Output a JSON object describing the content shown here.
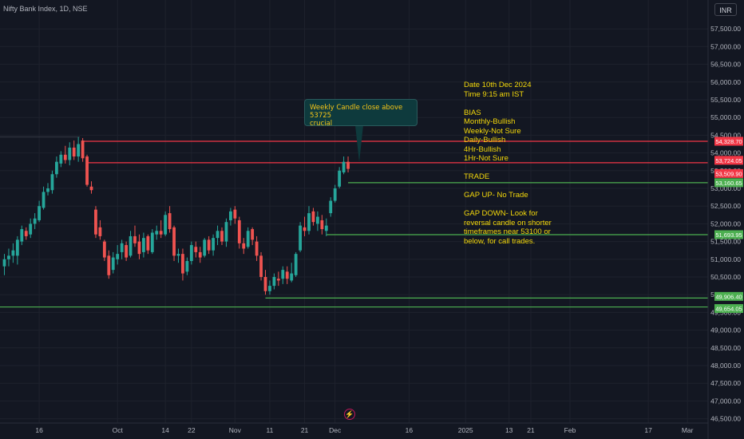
{
  "header": {
    "symbol": "Nifty Bank Index, 1D, NSE",
    "currency": "INR"
  },
  "colors": {
    "background": "#131722",
    "up": "#26a69a",
    "down": "#ef5350",
    "axis_text": "#b2b5be",
    "red_line": "#f23645",
    "green_line": "#4caf50",
    "note_text": "#f5d90a",
    "grid": "#1e222d"
  },
  "callout": {
    "line1": "Weekly Candle close above 53725",
    "line2": "crucial"
  },
  "notes": {
    "date": "Date 10th Dec 2024",
    "time": "Time 9:15 am IST",
    "bias_title": "BIAS",
    "monthly": "Monthly-Bullish",
    "weekly": "Weekly-Not Sure",
    "daily": "Daily-Bullish",
    "h4": "4Hr-Bullish",
    "h1": "1Hr-Not Sure",
    "trade_title": "TRADE",
    "gap_up": "GAP UP- No Trade",
    "gap_down_1": "GAP DOWN- Look for",
    "gap_down_2": "reversal candle on shorter",
    "gap_down_3": "timeframes near 53100 or",
    "gap_down_4": "below, for call trades."
  },
  "icons": {
    "event_marker": "lightning-bolt-icon"
  },
  "chart_data": {
    "type": "candlestick",
    "ylim": [
      46500,
      58000
    ],
    "y_ticks": [
      {
        "value": 57500,
        "label": "57,500.00"
      },
      {
        "value": 57000,
        "label": "57,000.00"
      },
      {
        "value": 56500,
        "label": "56,500.00"
      },
      {
        "value": 56000,
        "label": "56,000.00"
      },
      {
        "value": 55500,
        "label": "55,500.00"
      },
      {
        "value": 55000,
        "label": "55,000.00"
      },
      {
        "value": 54500,
        "label": "54,500.00"
      },
      {
        "value": 54000,
        "label": "54,000.00"
      },
      {
        "value": 53500,
        "label": "53,500.00"
      },
      {
        "value": 53000,
        "label": "53,000.00"
      },
      {
        "value": 52500,
        "label": "52,500.00"
      },
      {
        "value": 52000,
        "label": "52,000.00"
      },
      {
        "value": 51500,
        "label": "51,500.00"
      },
      {
        "value": 51000,
        "label": "51,000.00"
      },
      {
        "value": 50500,
        "label": "50,500.00"
      },
      {
        "value": 50000,
        "label": "50,000.00"
      },
      {
        "value": 49500,
        "label": "49,500.00"
      },
      {
        "value": 49000,
        "label": "49,000.00"
      },
      {
        "value": 48500,
        "label": "48,500.00"
      },
      {
        "value": 48000,
        "label": "48,000.00"
      },
      {
        "value": 47500,
        "label": "47,500.00"
      },
      {
        "value": 47000,
        "label": "47,000.00"
      },
      {
        "value": 46500,
        "label": "46,500.00"
      }
    ],
    "x_ticks": [
      {
        "label": "16",
        "bar": 8
      },
      {
        "label": "Oct",
        "bar": 26
      },
      {
        "label": "14",
        "bar": 37
      },
      {
        "label": "22",
        "bar": 43
      },
      {
        "label": "Nov",
        "bar": 53
      },
      {
        "label": "11",
        "bar": 61
      },
      {
        "label": "21",
        "bar": 69
      },
      {
        "label": "Dec",
        "bar": 76
      },
      {
        "label": "16",
        "bar": 93
      },
      {
        "label": "2025",
        "bar": 106
      },
      {
        "label": "13",
        "bar": 116
      },
      {
        "label": "21",
        "bar": 121
      },
      {
        "label": "Feb",
        "bar": 130
      },
      {
        "label": "17",
        "bar": 148
      },
      {
        "label": "Mar",
        "bar": 157
      }
    ],
    "candles": [
      {
        "o": 50800,
        "h": 51150,
        "l": 50550,
        "c": 51000
      },
      {
        "o": 51000,
        "h": 51300,
        "l": 50800,
        "c": 51100
      },
      {
        "o": 51100,
        "h": 51450,
        "l": 50900,
        "c": 51250
      },
      {
        "o": 51100,
        "h": 51650,
        "l": 50850,
        "c": 51550
      },
      {
        "o": 51500,
        "h": 51950,
        "l": 51400,
        "c": 51850
      },
      {
        "o": 51800,
        "h": 51900,
        "l": 51550,
        "c": 51650
      },
      {
        "o": 51700,
        "h": 52150,
        "l": 51600,
        "c": 52000
      },
      {
        "o": 52000,
        "h": 52300,
        "l": 51850,
        "c": 52150
      },
      {
        "o": 52100,
        "h": 52650,
        "l": 52050,
        "c": 52500
      },
      {
        "o": 52450,
        "h": 53050,
        "l": 52400,
        "c": 52900
      },
      {
        "o": 52900,
        "h": 53150,
        "l": 52800,
        "c": 53000
      },
      {
        "o": 52950,
        "h": 53500,
        "l": 52850,
        "c": 53400
      },
      {
        "o": 53400,
        "h": 53900,
        "l": 53300,
        "c": 53750
      },
      {
        "o": 53700,
        "h": 54050,
        "l": 53600,
        "c": 53950
      },
      {
        "o": 53950,
        "h": 54200,
        "l": 53700,
        "c": 53800
      },
      {
        "o": 53800,
        "h": 54300,
        "l": 53650,
        "c": 54150
      },
      {
        "o": 54150,
        "h": 54350,
        "l": 53800,
        "c": 53900
      },
      {
        "o": 53900,
        "h": 54450,
        "l": 53750,
        "c": 54250
      },
      {
        "o": 54350,
        "h": 54420,
        "l": 53750,
        "c": 53850
      },
      {
        "o": 53900,
        "h": 53950,
        "l": 53050,
        "c": 53100
      },
      {
        "o": 53050,
        "h": 53200,
        "l": 52850,
        "c": 52950
      },
      {
        "o": 52400,
        "h": 52500,
        "l": 51600,
        "c": 51700
      },
      {
        "o": 51900,
        "h": 52100,
        "l": 51550,
        "c": 51650
      },
      {
        "o": 51500,
        "h": 51550,
        "l": 50950,
        "c": 51050
      },
      {
        "o": 51100,
        "h": 51250,
        "l": 50450,
        "c": 50550
      },
      {
        "o": 50700,
        "h": 51200,
        "l": 50600,
        "c": 51050
      },
      {
        "o": 51000,
        "h": 51400,
        "l": 50850,
        "c": 51150
      },
      {
        "o": 51200,
        "h": 51550,
        "l": 51000,
        "c": 51450
      },
      {
        "o": 51400,
        "h": 51500,
        "l": 50950,
        "c": 51050
      },
      {
        "o": 51100,
        "h": 51800,
        "l": 51050,
        "c": 51650
      },
      {
        "o": 51650,
        "h": 51950,
        "l": 51350,
        "c": 51450
      },
      {
        "o": 51500,
        "h": 51700,
        "l": 51000,
        "c": 51150
      },
      {
        "o": 51200,
        "h": 51750,
        "l": 51050,
        "c": 51600
      },
      {
        "o": 51650,
        "h": 51700,
        "l": 51150,
        "c": 51250
      },
      {
        "o": 51200,
        "h": 51850,
        "l": 51150,
        "c": 51750
      },
      {
        "o": 51700,
        "h": 51950,
        "l": 51550,
        "c": 51800
      },
      {
        "o": 51800,
        "h": 52100,
        "l": 51600,
        "c": 51700
      },
      {
        "o": 51700,
        "h": 52350,
        "l": 51650,
        "c": 52250
      },
      {
        "o": 52300,
        "h": 52500,
        "l": 51750,
        "c": 51850
      },
      {
        "o": 51900,
        "h": 51950,
        "l": 50950,
        "c": 51100
      },
      {
        "o": 51100,
        "h": 51300,
        "l": 50900,
        "c": 51150
      },
      {
        "o": 51150,
        "h": 51300,
        "l": 50400,
        "c": 50600
      },
      {
        "o": 50650,
        "h": 51050,
        "l": 50550,
        "c": 50950
      },
      {
        "o": 50950,
        "h": 51500,
        "l": 50850,
        "c": 51400
      },
      {
        "o": 51350,
        "h": 51500,
        "l": 51050,
        "c": 51200
      },
      {
        "o": 51200,
        "h": 51350,
        "l": 50900,
        "c": 51050
      },
      {
        "o": 51100,
        "h": 51600,
        "l": 51050,
        "c": 51550
      },
      {
        "o": 51550,
        "h": 51650,
        "l": 51150,
        "c": 51250
      },
      {
        "o": 51250,
        "h": 51700,
        "l": 51100,
        "c": 51600
      },
      {
        "o": 51600,
        "h": 51950,
        "l": 51400,
        "c": 51800
      },
      {
        "o": 51800,
        "h": 51900,
        "l": 51400,
        "c": 51500
      },
      {
        "o": 51500,
        "h": 52150,
        "l": 51350,
        "c": 52050
      },
      {
        "o": 52100,
        "h": 52450,
        "l": 51950,
        "c": 52350
      },
      {
        "o": 52400,
        "h": 52500,
        "l": 52000,
        "c": 52150
      },
      {
        "o": 52100,
        "h": 52200,
        "l": 51300,
        "c": 51450
      },
      {
        "o": 51450,
        "h": 51600,
        "l": 51150,
        "c": 51300
      },
      {
        "o": 51350,
        "h": 51900,
        "l": 51300,
        "c": 51800
      },
      {
        "o": 51850,
        "h": 51900,
        "l": 51400,
        "c": 51550
      },
      {
        "o": 51500,
        "h": 51650,
        "l": 50950,
        "c": 51100
      },
      {
        "o": 51100,
        "h": 51200,
        "l": 50400,
        "c": 50500
      },
      {
        "o": 50500,
        "h": 50700,
        "l": 50000,
        "c": 50100
      },
      {
        "o": 50100,
        "h": 50400,
        "l": 50000,
        "c": 50250
      },
      {
        "o": 50250,
        "h": 50600,
        "l": 50150,
        "c": 50500
      },
      {
        "o": 50450,
        "h": 50650,
        "l": 50250,
        "c": 50400
      },
      {
        "o": 50450,
        "h": 50800,
        "l": 50300,
        "c": 50700
      },
      {
        "o": 50650,
        "h": 50800,
        "l": 50300,
        "c": 50450
      },
      {
        "o": 50400,
        "h": 50900,
        "l": 50350,
        "c": 50600
      },
      {
        "o": 50550,
        "h": 51200,
        "l": 50500,
        "c": 51150
      },
      {
        "o": 51250,
        "h": 52050,
        "l": 51200,
        "c": 51950
      },
      {
        "o": 51900,
        "h": 52200,
        "l": 51650,
        "c": 51800
      },
      {
        "o": 51800,
        "h": 52500,
        "l": 51700,
        "c": 52300
      },
      {
        "o": 52350,
        "h": 52450,
        "l": 51950,
        "c": 52050
      },
      {
        "o": 52000,
        "h": 52350,
        "l": 51800,
        "c": 52200
      },
      {
        "o": 52100,
        "h": 52250,
        "l": 51700,
        "c": 51850
      },
      {
        "o": 51800,
        "h": 52150,
        "l": 51650,
        "c": 51950
      },
      {
        "o": 52300,
        "h": 52750,
        "l": 52200,
        "c": 52650
      },
      {
        "o": 52650,
        "h": 53100,
        "l": 52600,
        "c": 53000
      },
      {
        "o": 53050,
        "h": 53600,
        "l": 53000,
        "c": 53500
      },
      {
        "o": 53450,
        "h": 53900,
        "l": 53400,
        "c": 53750
      },
      {
        "o": 53750,
        "h": 53900,
        "l": 53450,
        "c": 53550
      }
    ],
    "levels": [
      {
        "price": 54328.7,
        "label": "54,328.70",
        "color": "#f23645",
        "from_bar": 18
      },
      {
        "price": 53724.05,
        "label": "53,724.05",
        "color": "#f23645",
        "from_bar": 19
      },
      {
        "price": 53509.9,
        "label": "53,509.90",
        "color": "#f23645",
        "from_bar": null
      },
      {
        "price": 53160.65,
        "label": "53,160.65",
        "color": "#4caf50",
        "from_bar": 79
      },
      {
        "price": 51693.95,
        "label": "51,693.95",
        "color": "#4caf50",
        "from_bar": 74
      },
      {
        "price": 49906.4,
        "label": "49,906.40",
        "color": "#4caf50",
        "from_bar": 60
      },
      {
        "price": 49654.05,
        "label": "49,654.05",
        "color": "#4caf50",
        "from_bar": 0
      }
    ]
  }
}
